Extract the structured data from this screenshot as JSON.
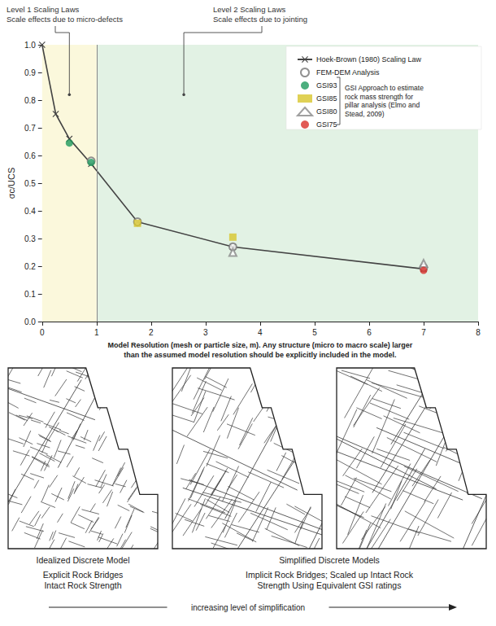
{
  "chart_data": {
    "type": "line",
    "annotations": [
      {
        "text": [
          "Level 1 Scaling Laws",
          "Scale effects due to micro-defects"
        ],
        "x_range": [
          0,
          1
        ],
        "color": "#fbf8dc",
        "arrow_at": [
          0.5,
          0.82
        ]
      },
      {
        "text": [
          "Level 2 Scaling Laws",
          "Scale effects due to jointing"
        ],
        "x_range": [
          1,
          8
        ],
        "color": "#e2f2e4",
        "arrow_at": [
          2.6,
          0.82
        ]
      }
    ],
    "xlabel": "Model Resolution (mesh or particle size, m). Any structure (micro to macro scale) larger than the assumed model resolution should be explicitly included in the model.",
    "ylabel": "σc/UCS",
    "xlim": [
      0,
      8
    ],
    "xticks": [
      0,
      1,
      2,
      3,
      4,
      5,
      6,
      7,
      8
    ],
    "ylim": [
      0,
      1
    ],
    "yticks": [
      {
        "value": 0,
        "label": "0.0"
      },
      0.1,
      0.2,
      0.3,
      0.4,
      0.5,
      0.6,
      0.7,
      0.8,
      0.9,
      {
        "value": 1,
        "label": "1.0"
      }
    ],
    "grid": false,
    "legend": "upper right",
    "series": [
      {
        "name": "Hoek-Brown (1980) Scaling Law",
        "type": "line",
        "color": "#444444",
        "marker": "x",
        "line_style": "solid",
        "x": [
          0,
          0.25,
          0.5,
          0.9,
          1.75,
          3.5,
          7
        ],
        "values": [
          1.0,
          0.75,
          0.66,
          0.57,
          0.36,
          0.27,
          0.19
        ]
      },
      {
        "name": "FEM-DEM Analysis",
        "type": "scatter",
        "color": "#777777",
        "marker": "circle-open",
        "x": [
          0.9,
          1.75,
          3.5,
          7
        ],
        "values": [
          0.58,
          0.36,
          0.27,
          0.195
        ]
      },
      {
        "name": "GSI93",
        "type": "scatter",
        "color": "#1f9a5e",
        "marker": "circle",
        "x": [
          0.5,
          0.9
        ],
        "values": [
          0.645,
          0.575
        ]
      },
      {
        "name": "GSI85",
        "type": "scatter",
        "color": "#d8c62c",
        "marker": "square",
        "x": [
          1.75,
          3.5
        ],
        "values": [
          0.355,
          0.305
        ]
      },
      {
        "name": "GSI80",
        "type": "scatter",
        "color": "#888888",
        "marker": "triangle-open",
        "x": [
          3.5,
          7
        ],
        "values": [
          0.25,
          0.21
        ]
      },
      {
        "name": "GSI75",
        "type": "scatter",
        "color": "#d9302a",
        "marker": "circle",
        "x": [
          7
        ],
        "values": [
          0.185
        ]
      }
    ],
    "legend_note": {
      "text": "GSI Approach to estimate rock mass strength for pillar analysis (Elmo and Stead, 2009)",
      "series": [
        "GSI93",
        "GSI85",
        "GSI80",
        "GSI75"
      ]
    }
  },
  "model_groups": [
    {
      "title": "Idealized Discrete Model",
      "notes": [
        "Explicit Rock Bridges",
        "Intact Rock Strength"
      ],
      "diagrams": 1
    },
    {
      "title": "Simplified Discrete Models",
      "notes": [
        "Implicit Rock Bridges; Scaled up Intact Rock",
        "Strength Using Equivalent GSI ratings"
      ],
      "diagrams": 2
    }
  ],
  "simplification": "increasing level of simplification"
}
